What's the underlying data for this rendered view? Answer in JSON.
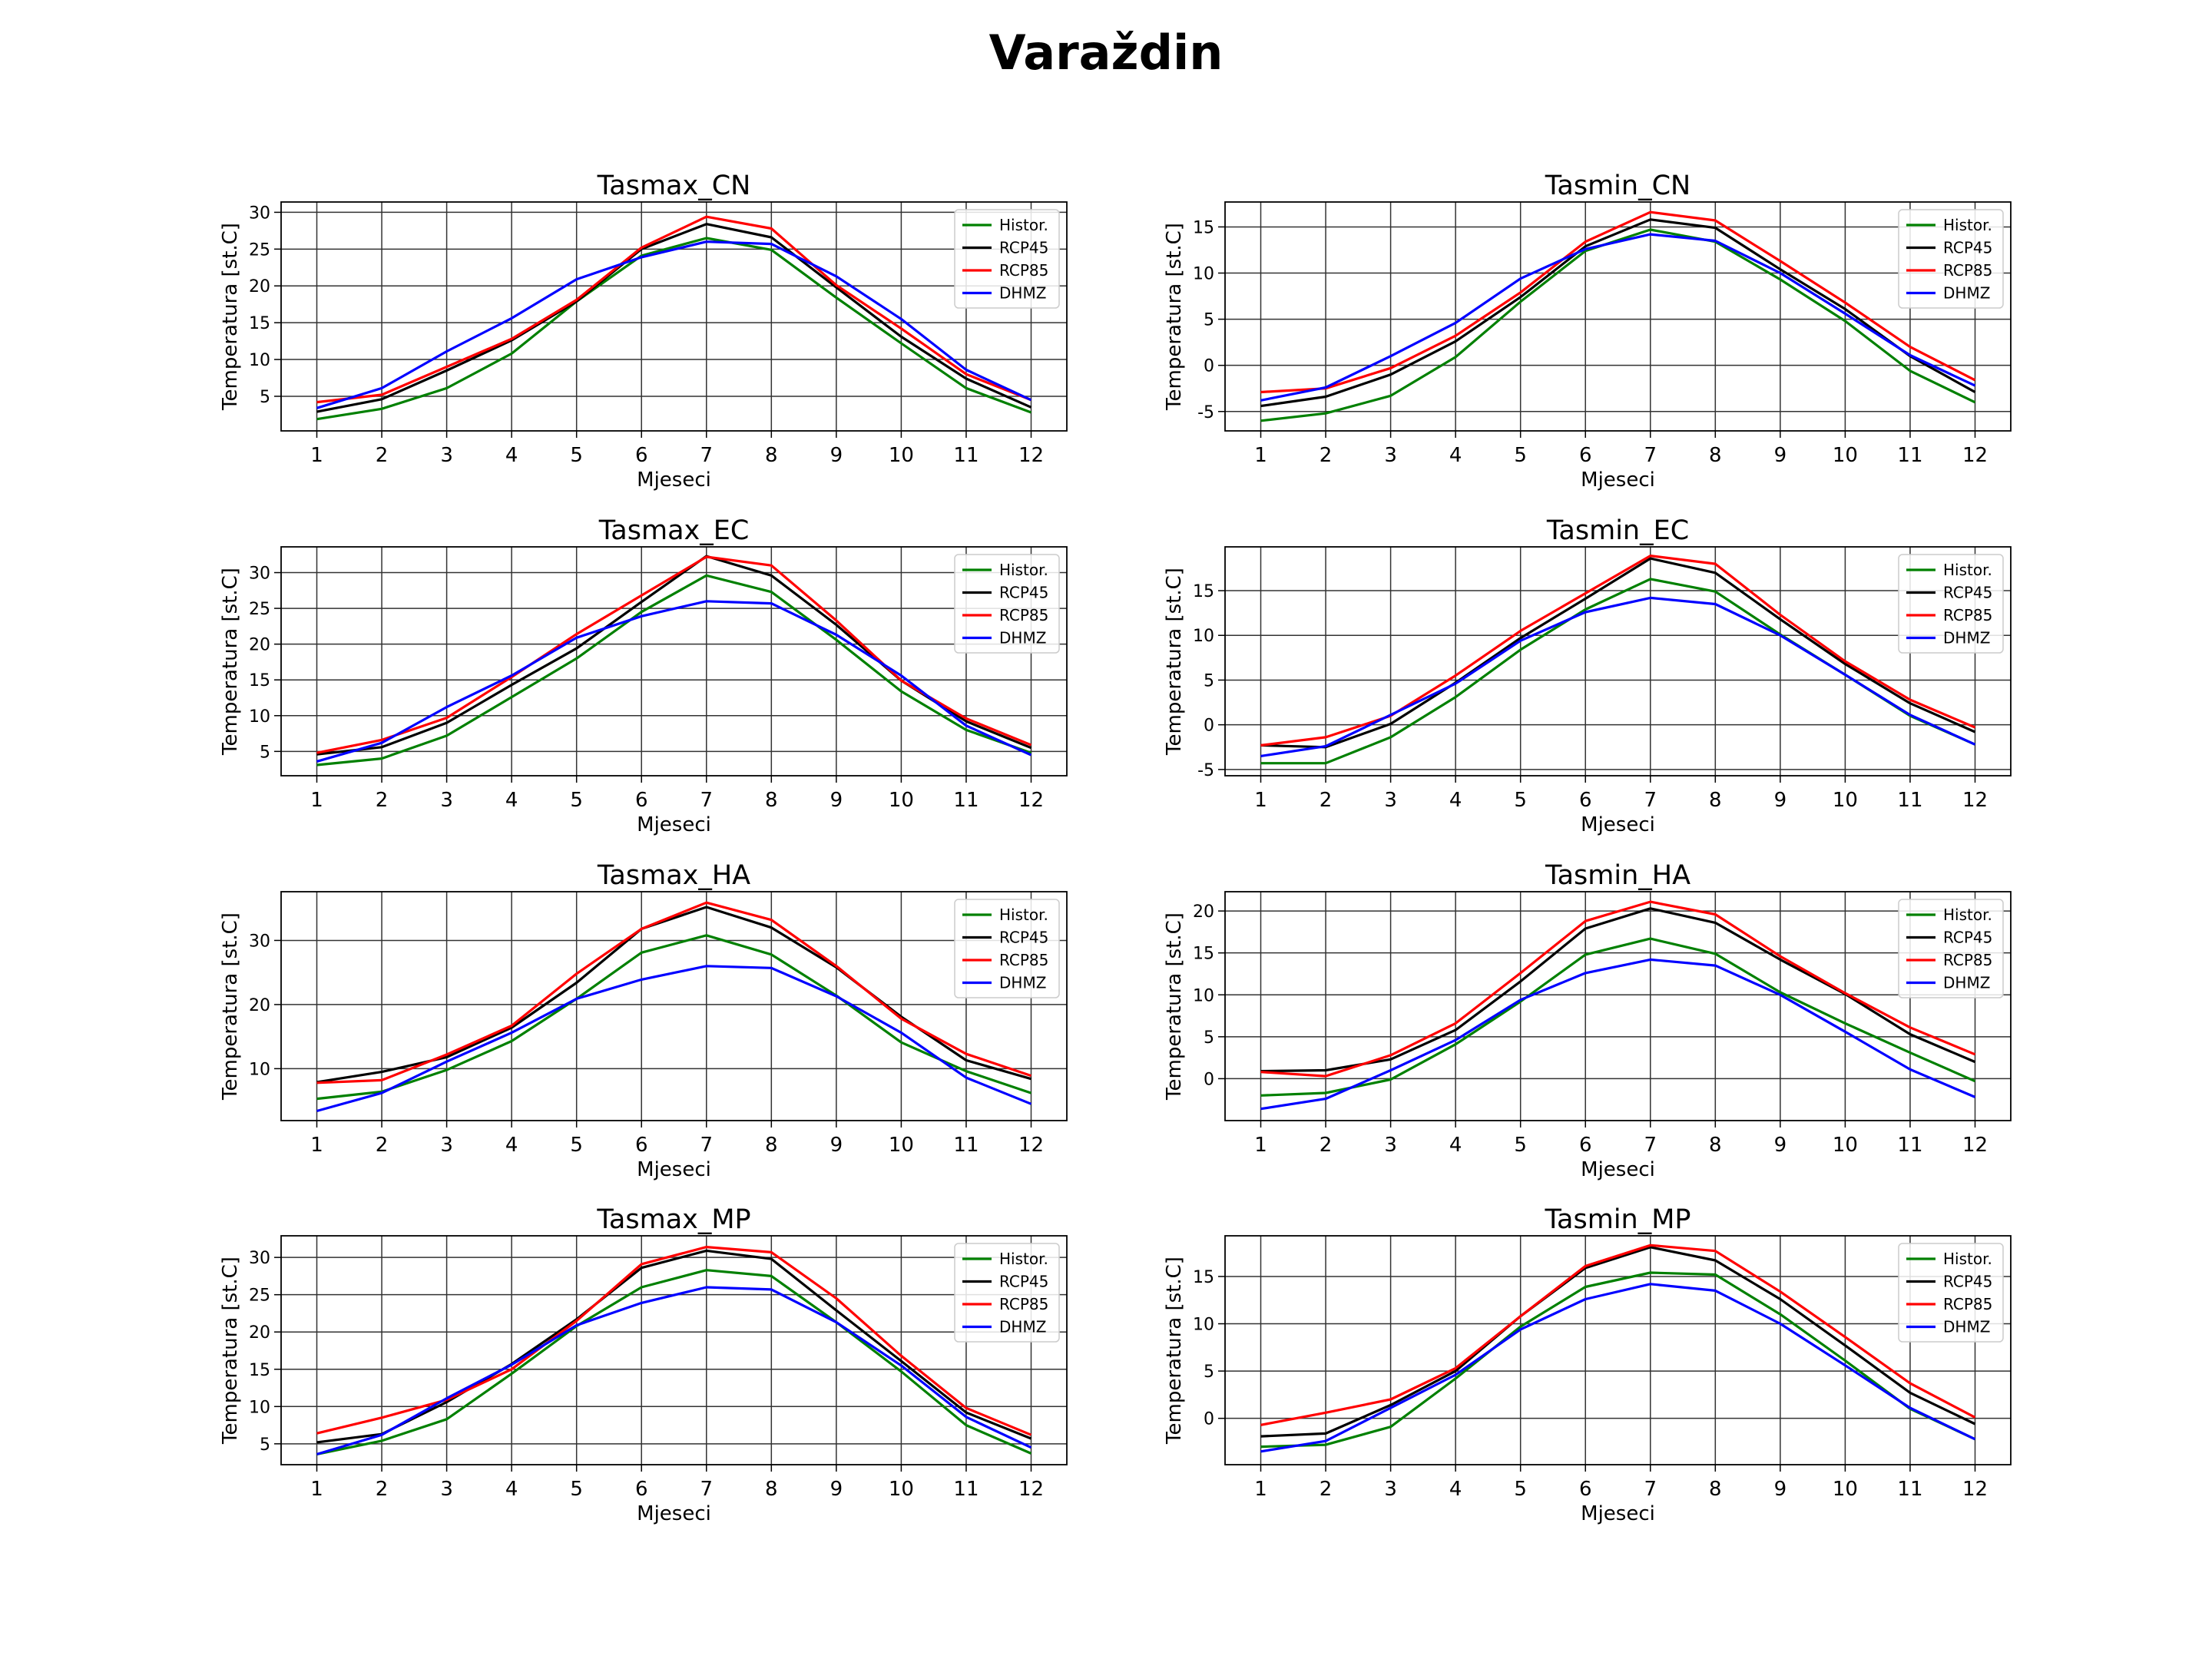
{
  "figure": {
    "title": "Varaždin"
  },
  "shared": {
    "months": [
      1,
      2,
      3,
      4,
      5,
      6,
      7,
      8,
      9,
      10,
      11,
      12
    ],
    "xlabel": "Mjeseci",
    "ylabel": "Temperatura [st.C]",
    "legend_position": "top-right",
    "grid": true
  },
  "chart_data": [
    {
      "type": "line",
      "title": "Tasmax_CN",
      "xlabel": "Mjeseci",
      "ylabel": "Temperatura [st.C]",
      "categories": [
        1,
        2,
        3,
        4,
        5,
        6,
        7,
        8,
        9,
        10,
        11,
        12
      ],
      "ylim": [
        0.3,
        31.4
      ],
      "yticks": [
        5,
        10,
        15,
        20,
        25,
        30
      ],
      "series": [
        {
          "name": "Histor.",
          "color": "#008000",
          "values": [
            1.9,
            3.3,
            6.1,
            10.8,
            17.9,
            24.1,
            26.5,
            24.9,
            18.4,
            12.2,
            6.1,
            2.8
          ]
        },
        {
          "name": "RCP45",
          "color": "#000000",
          "values": [
            2.9,
            4.6,
            8.5,
            12.6,
            17.9,
            25.0,
            28.4,
            26.6,
            19.8,
            13.1,
            7.4,
            3.5
          ]
        },
        {
          "name": "RCP85",
          "color": "#ff0000",
          "values": [
            4.2,
            5.2,
            9.0,
            12.8,
            18.1,
            25.2,
            29.4,
            27.8,
            20.1,
            14.2,
            8.0,
            4.5
          ]
        },
        {
          "name": "DHMZ",
          "color": "#0000ff",
          "values": [
            3.4,
            6.1,
            11.1,
            15.6,
            20.9,
            23.9,
            26.0,
            25.7,
            21.3,
            15.5,
            8.6,
            4.5
          ]
        }
      ]
    },
    {
      "type": "line",
      "title": "Tasmin_CN",
      "xlabel": "Mjeseci",
      "ylabel": "Temperatura [st.C]",
      "categories": [
        1,
        2,
        3,
        4,
        5,
        6,
        7,
        8,
        9,
        10,
        11,
        12
      ],
      "ylim": [
        -7.1,
        17.7
      ],
      "yticks": [
        -5,
        0,
        5,
        10,
        15
      ],
      "series": [
        {
          "name": "Histor.",
          "color": "#008000",
          "values": [
            -6.0,
            -5.2,
            -3.3,
            0.9,
            6.9,
            12.4,
            14.7,
            13.4,
            9.3,
            4.8,
            -0.6,
            -4.0
          ]
        },
        {
          "name": "RCP45",
          "color": "#000000",
          "values": [
            -4.4,
            -3.4,
            -1.0,
            2.6,
            7.4,
            12.9,
            15.8,
            14.9,
            10.4,
            6.1,
            1.0,
            -2.9
          ]
        },
        {
          "name": "RCP85",
          "color": "#ff0000",
          "values": [
            -2.9,
            -2.5,
            -0.3,
            3.2,
            7.9,
            13.4,
            16.6,
            15.7,
            11.3,
            6.8,
            2.0,
            -1.6
          ]
        },
        {
          "name": "DHMZ",
          "color": "#0000ff",
          "values": [
            -3.8,
            -2.4,
            1.0,
            4.6,
            9.4,
            12.6,
            14.2,
            13.5,
            10.0,
            5.6,
            1.1,
            -2.2
          ]
        }
      ]
    },
    {
      "type": "line",
      "title": "Tasmax_EC",
      "xlabel": "Mjeseci",
      "ylabel": "Temperatura [st.C]",
      "categories": [
        1,
        2,
        3,
        4,
        5,
        6,
        7,
        8,
        9,
        10,
        11,
        12
      ],
      "ylim": [
        1.6,
        33.6
      ],
      "yticks": [
        5,
        10,
        15,
        20,
        25,
        30
      ],
      "series": [
        {
          "name": "Histor.",
          "color": "#008000",
          "values": [
            3.1,
            4.0,
            7.2,
            12.6,
            18.0,
            24.5,
            29.6,
            27.3,
            20.6,
            13.4,
            8.0,
            4.8
          ]
        },
        {
          "name": "RCP45",
          "color": "#000000",
          "values": [
            4.6,
            5.6,
            9.0,
            14.3,
            19.4,
            25.9,
            32.3,
            29.6,
            22.7,
            14.9,
            9.2,
            5.5
          ]
        },
        {
          "name": "RCP85",
          "color": "#ff0000",
          "values": [
            4.8,
            6.6,
            9.7,
            15.4,
            21.4,
            26.8,
            32.2,
            31.0,
            23.3,
            14.9,
            9.6,
            5.9
          ]
        },
        {
          "name": "DHMZ",
          "color": "#0000ff",
          "values": [
            3.6,
            6.2,
            11.2,
            15.6,
            20.9,
            23.9,
            26.0,
            25.7,
            21.3,
            15.6,
            8.6,
            4.5
          ]
        }
      ]
    },
    {
      "type": "line",
      "title": "Tasmin_EC",
      "xlabel": "Mjeseci",
      "ylabel": "Temperatura [st.C]",
      "categories": [
        1,
        2,
        3,
        4,
        5,
        6,
        7,
        8,
        9,
        10,
        11,
        12
      ],
      "ylim": [
        -5.7,
        19.9
      ],
      "yticks": [
        -5,
        0,
        5,
        10,
        15
      ],
      "series": [
        {
          "name": "Histor.",
          "color": "#008000",
          "values": [
            -4.3,
            -4.3,
            -1.4,
            3.1,
            8.4,
            12.9,
            16.3,
            14.9,
            10.1,
            5.6,
            1.0,
            -2.2
          ]
        },
        {
          "name": "RCP45",
          "color": "#000000",
          "values": [
            -2.3,
            -2.5,
            0.1,
            4.7,
            9.7,
            14.1,
            18.6,
            17.0,
            11.8,
            6.8,
            2.4,
            -0.8
          ]
        },
        {
          "name": "RCP85",
          "color": "#ff0000",
          "values": [
            -2.3,
            -1.4,
            1.0,
            5.5,
            10.5,
            14.7,
            18.9,
            18.0,
            12.3,
            7.1,
            2.8,
            -0.3
          ]
        },
        {
          "name": "DHMZ",
          "color": "#0000ff",
          "values": [
            -3.5,
            -2.4,
            1.1,
            4.6,
            9.4,
            12.6,
            14.2,
            13.5,
            10.0,
            5.6,
            1.1,
            -2.2
          ]
        }
      ]
    },
    {
      "type": "line",
      "title": "Tasmax_HA",
      "xlabel": "Mjeseci",
      "ylabel": "Temperatura [st.C]",
      "categories": [
        1,
        2,
        3,
        4,
        5,
        6,
        7,
        8,
        9,
        10,
        11,
        12
      ],
      "ylim": [
        1.9,
        37.6
      ],
      "yticks": [
        10,
        20,
        30
      ],
      "series": [
        {
          "name": "Histor.",
          "color": "#008000",
          "values": [
            5.3,
            6.4,
            9.8,
            14.3,
            20.9,
            28.1,
            30.8,
            27.8,
            21.4,
            14.1,
            9.6,
            6.2
          ]
        },
        {
          "name": "RCP45",
          "color": "#000000",
          "values": [
            7.9,
            9.5,
            11.8,
            16.4,
            23.4,
            31.8,
            35.2,
            32.0,
            25.8,
            18.1,
            11.3,
            8.4
          ]
        },
        {
          "name": "RCP85",
          "color": "#ff0000",
          "values": [
            7.8,
            8.2,
            12.2,
            16.7,
            24.8,
            31.8,
            35.9,
            33.2,
            26.0,
            17.8,
            12.3,
            8.9
          ]
        },
        {
          "name": "DHMZ",
          "color": "#0000ff",
          "values": [
            3.4,
            6.2,
            11.1,
            15.6,
            20.9,
            23.9,
            26.0,
            25.7,
            21.3,
            15.6,
            8.6,
            4.5
          ]
        }
      ]
    },
    {
      "type": "line",
      "title": "Tasmin_HA",
      "xlabel": "Mjeseci",
      "ylabel": "Temperatura [st.C]",
      "categories": [
        1,
        2,
        3,
        4,
        5,
        6,
        7,
        8,
        9,
        10,
        11,
        12
      ],
      "ylim": [
        -5.0,
        22.3
      ],
      "yticks": [
        0,
        5,
        10,
        15,
        20
      ],
      "series": [
        {
          "name": "Histor.",
          "color": "#008000",
          "values": [
            -2.0,
            -1.7,
            -0.1,
            4.1,
            9.2,
            14.8,
            16.7,
            14.9,
            10.3,
            6.6,
            3.1,
            -0.3
          ]
        },
        {
          "name": "RCP45",
          "color": "#000000",
          "values": [
            0.9,
            1.0,
            2.3,
            5.8,
            11.6,
            17.9,
            20.3,
            18.6,
            14.2,
            10.1,
            5.3,
            2.0
          ]
        },
        {
          "name": "RCP85",
          "color": "#ff0000",
          "values": [
            0.8,
            0.3,
            2.8,
            6.6,
            12.6,
            18.8,
            21.1,
            19.6,
            14.6,
            10.2,
            6.1,
            2.9
          ]
        },
        {
          "name": "DHMZ",
          "color": "#0000ff",
          "values": [
            -3.6,
            -2.4,
            1.0,
            4.6,
            9.4,
            12.6,
            14.2,
            13.5,
            10.0,
            5.6,
            1.1,
            -2.2
          ]
        }
      ]
    },
    {
      "type": "line",
      "title": "Tasmax_MP",
      "xlabel": "Mjeseci",
      "ylabel": "Temperatura [st.C]",
      "categories": [
        1,
        2,
        3,
        4,
        5,
        6,
        7,
        8,
        9,
        10,
        11,
        12
      ],
      "ylim": [
        2.2,
        32.9
      ],
      "yticks": [
        5,
        10,
        15,
        20,
        25,
        30
      ],
      "series": [
        {
          "name": "Histor.",
          "color": "#008000",
          "values": [
            3.6,
            5.4,
            8.3,
            14.4,
            20.8,
            26.0,
            28.3,
            27.5,
            21.3,
            14.7,
            7.5,
            3.7
          ]
        },
        {
          "name": "RCP45",
          "color": "#000000",
          "values": [
            5.2,
            6.3,
            10.6,
            15.7,
            21.7,
            28.6,
            30.9,
            29.8,
            22.9,
            16.1,
            9.2,
            5.7
          ]
        },
        {
          "name": "RCP85",
          "color": "#ff0000",
          "values": [
            6.4,
            8.5,
            10.9,
            15.0,
            21.5,
            29.1,
            31.4,
            30.7,
            24.5,
            16.8,
            9.8,
            6.2
          ]
        },
        {
          "name": "DHMZ",
          "color": "#0000ff",
          "values": [
            3.6,
            6.2,
            11.1,
            15.6,
            20.9,
            23.9,
            26.0,
            25.7,
            21.3,
            15.5,
            8.6,
            4.5
          ]
        }
      ]
    },
    {
      "type": "line",
      "title": "Tasmin_MP",
      "xlabel": "Mjeseci",
      "ylabel": "Temperatura [st.C]",
      "categories": [
        1,
        2,
        3,
        4,
        5,
        6,
        7,
        8,
        9,
        10,
        11,
        12
      ],
      "ylim": [
        -4.9,
        19.3
      ],
      "yticks": [
        0,
        5,
        10,
        15
      ],
      "series": [
        {
          "name": "Histor.",
          "color": "#008000",
          "values": [
            -3.0,
            -2.8,
            -0.9,
            4.2,
            9.7,
            13.9,
            15.4,
            15.2,
            11.0,
            6.1,
            1.0,
            -2.2
          ]
        },
        {
          "name": "RCP45",
          "color": "#000000",
          "values": [
            -1.9,
            -1.6,
            1.4,
            5.0,
            10.8,
            15.9,
            18.1,
            16.7,
            12.6,
            7.7,
            2.7,
            -0.6
          ]
        },
        {
          "name": "RCP85",
          "color": "#ff0000",
          "values": [
            -0.7,
            0.6,
            2.0,
            5.3,
            10.8,
            16.1,
            18.3,
            17.7,
            13.4,
            8.6,
            3.7,
            0.1
          ]
        },
        {
          "name": "DHMZ",
          "color": "#0000ff",
          "values": [
            -3.5,
            -2.4,
            1.1,
            4.6,
            9.4,
            12.6,
            14.2,
            13.5,
            10.0,
            5.6,
            1.1,
            -2.2
          ]
        }
      ]
    }
  ]
}
